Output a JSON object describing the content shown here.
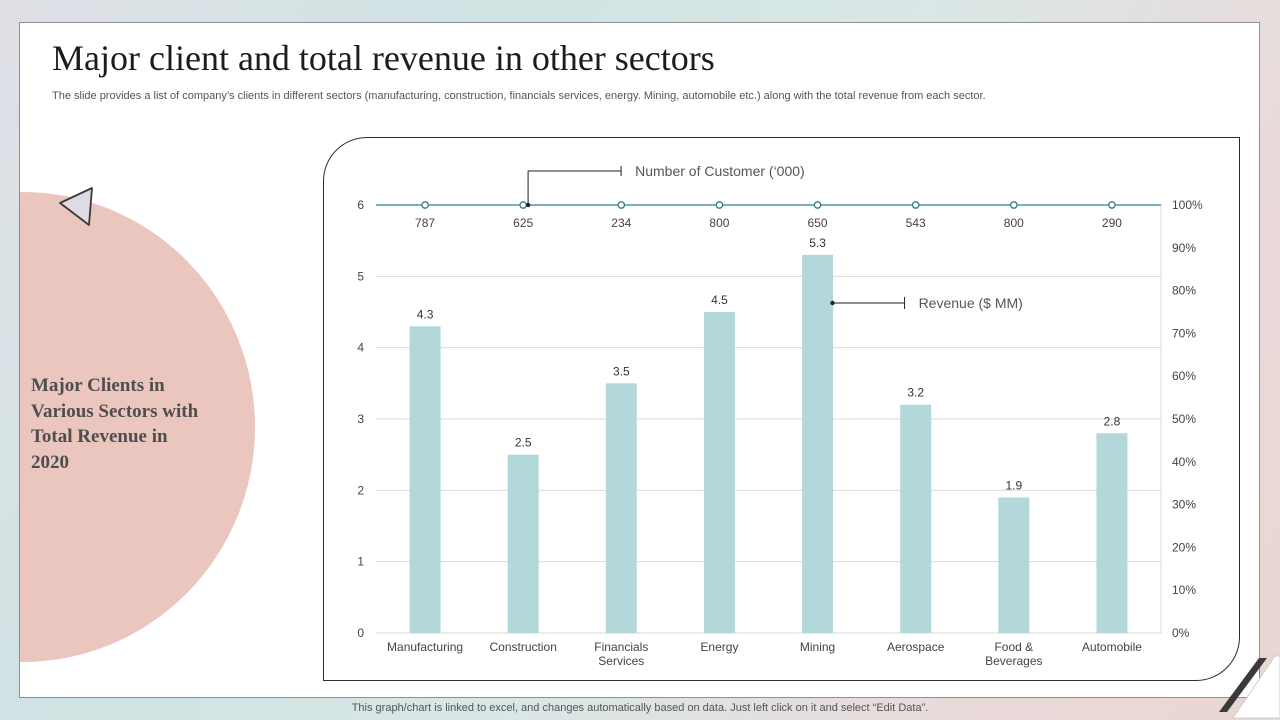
{
  "slide": {
    "title": "Major client and total revenue in other sectors",
    "subtitle": "The slide provides a list of company’s clients in different sectors (manufacturing, construction, financials services, energy. Mining, automobile etc.) along with the total revenue from each sector.",
    "side_label": "Major Clients in Various Sectors with Total Revenue in 2020",
    "footnote": "This graph/chart is linked to excel,  and changes automatically based on data. Just left click on it and select “Edit Data”."
  },
  "colors": {
    "bar": "#b3d8d9",
    "customer_line": "#2e7f8c",
    "circle": "#ebc6bf"
  },
  "chart_data": {
    "type": "bar",
    "categories": [
      "Manufacturing",
      "Construction",
      "Financials Services",
      "Energy",
      "Mining",
      "Aerospace",
      "Food & Beverages",
      "Automobile"
    ],
    "category_lines": [
      [
        "Manufacturing"
      ],
      [
        "Construction"
      ],
      [
        "Financials",
        "Services"
      ],
      [
        "Energy"
      ],
      [
        "Mining"
      ],
      [
        "Aerospace"
      ],
      [
        "Food &",
        "Beverages"
      ],
      [
        "Automobile"
      ]
    ],
    "series": [
      {
        "name": "Revenue ($ MM)",
        "type": "bar",
        "axis": "left",
        "values": [
          4.3,
          2.5,
          3.5,
          4.5,
          5.3,
          3.2,
          1.9,
          2.8
        ]
      },
      {
        "name": "Number of Customer (‘000)",
        "type": "line",
        "axis": "right",
        "values": [
          787,
          625,
          234,
          800,
          650,
          543,
          800,
          290
        ],
        "plotted_at_percent": 100
      }
    ],
    "ylim": [
      0,
      6
    ],
    "yticks": [
      "0",
      "1",
      "2",
      "3",
      "4",
      "5",
      "6"
    ],
    "y2lim": [
      0,
      100
    ],
    "y2ticks": [
      "0%",
      "10%",
      "20%",
      "30%",
      "40%",
      "50%",
      "60%",
      "70%",
      "80%",
      "90%",
      "100%"
    ],
    "grid": true,
    "data_labels": true
  }
}
